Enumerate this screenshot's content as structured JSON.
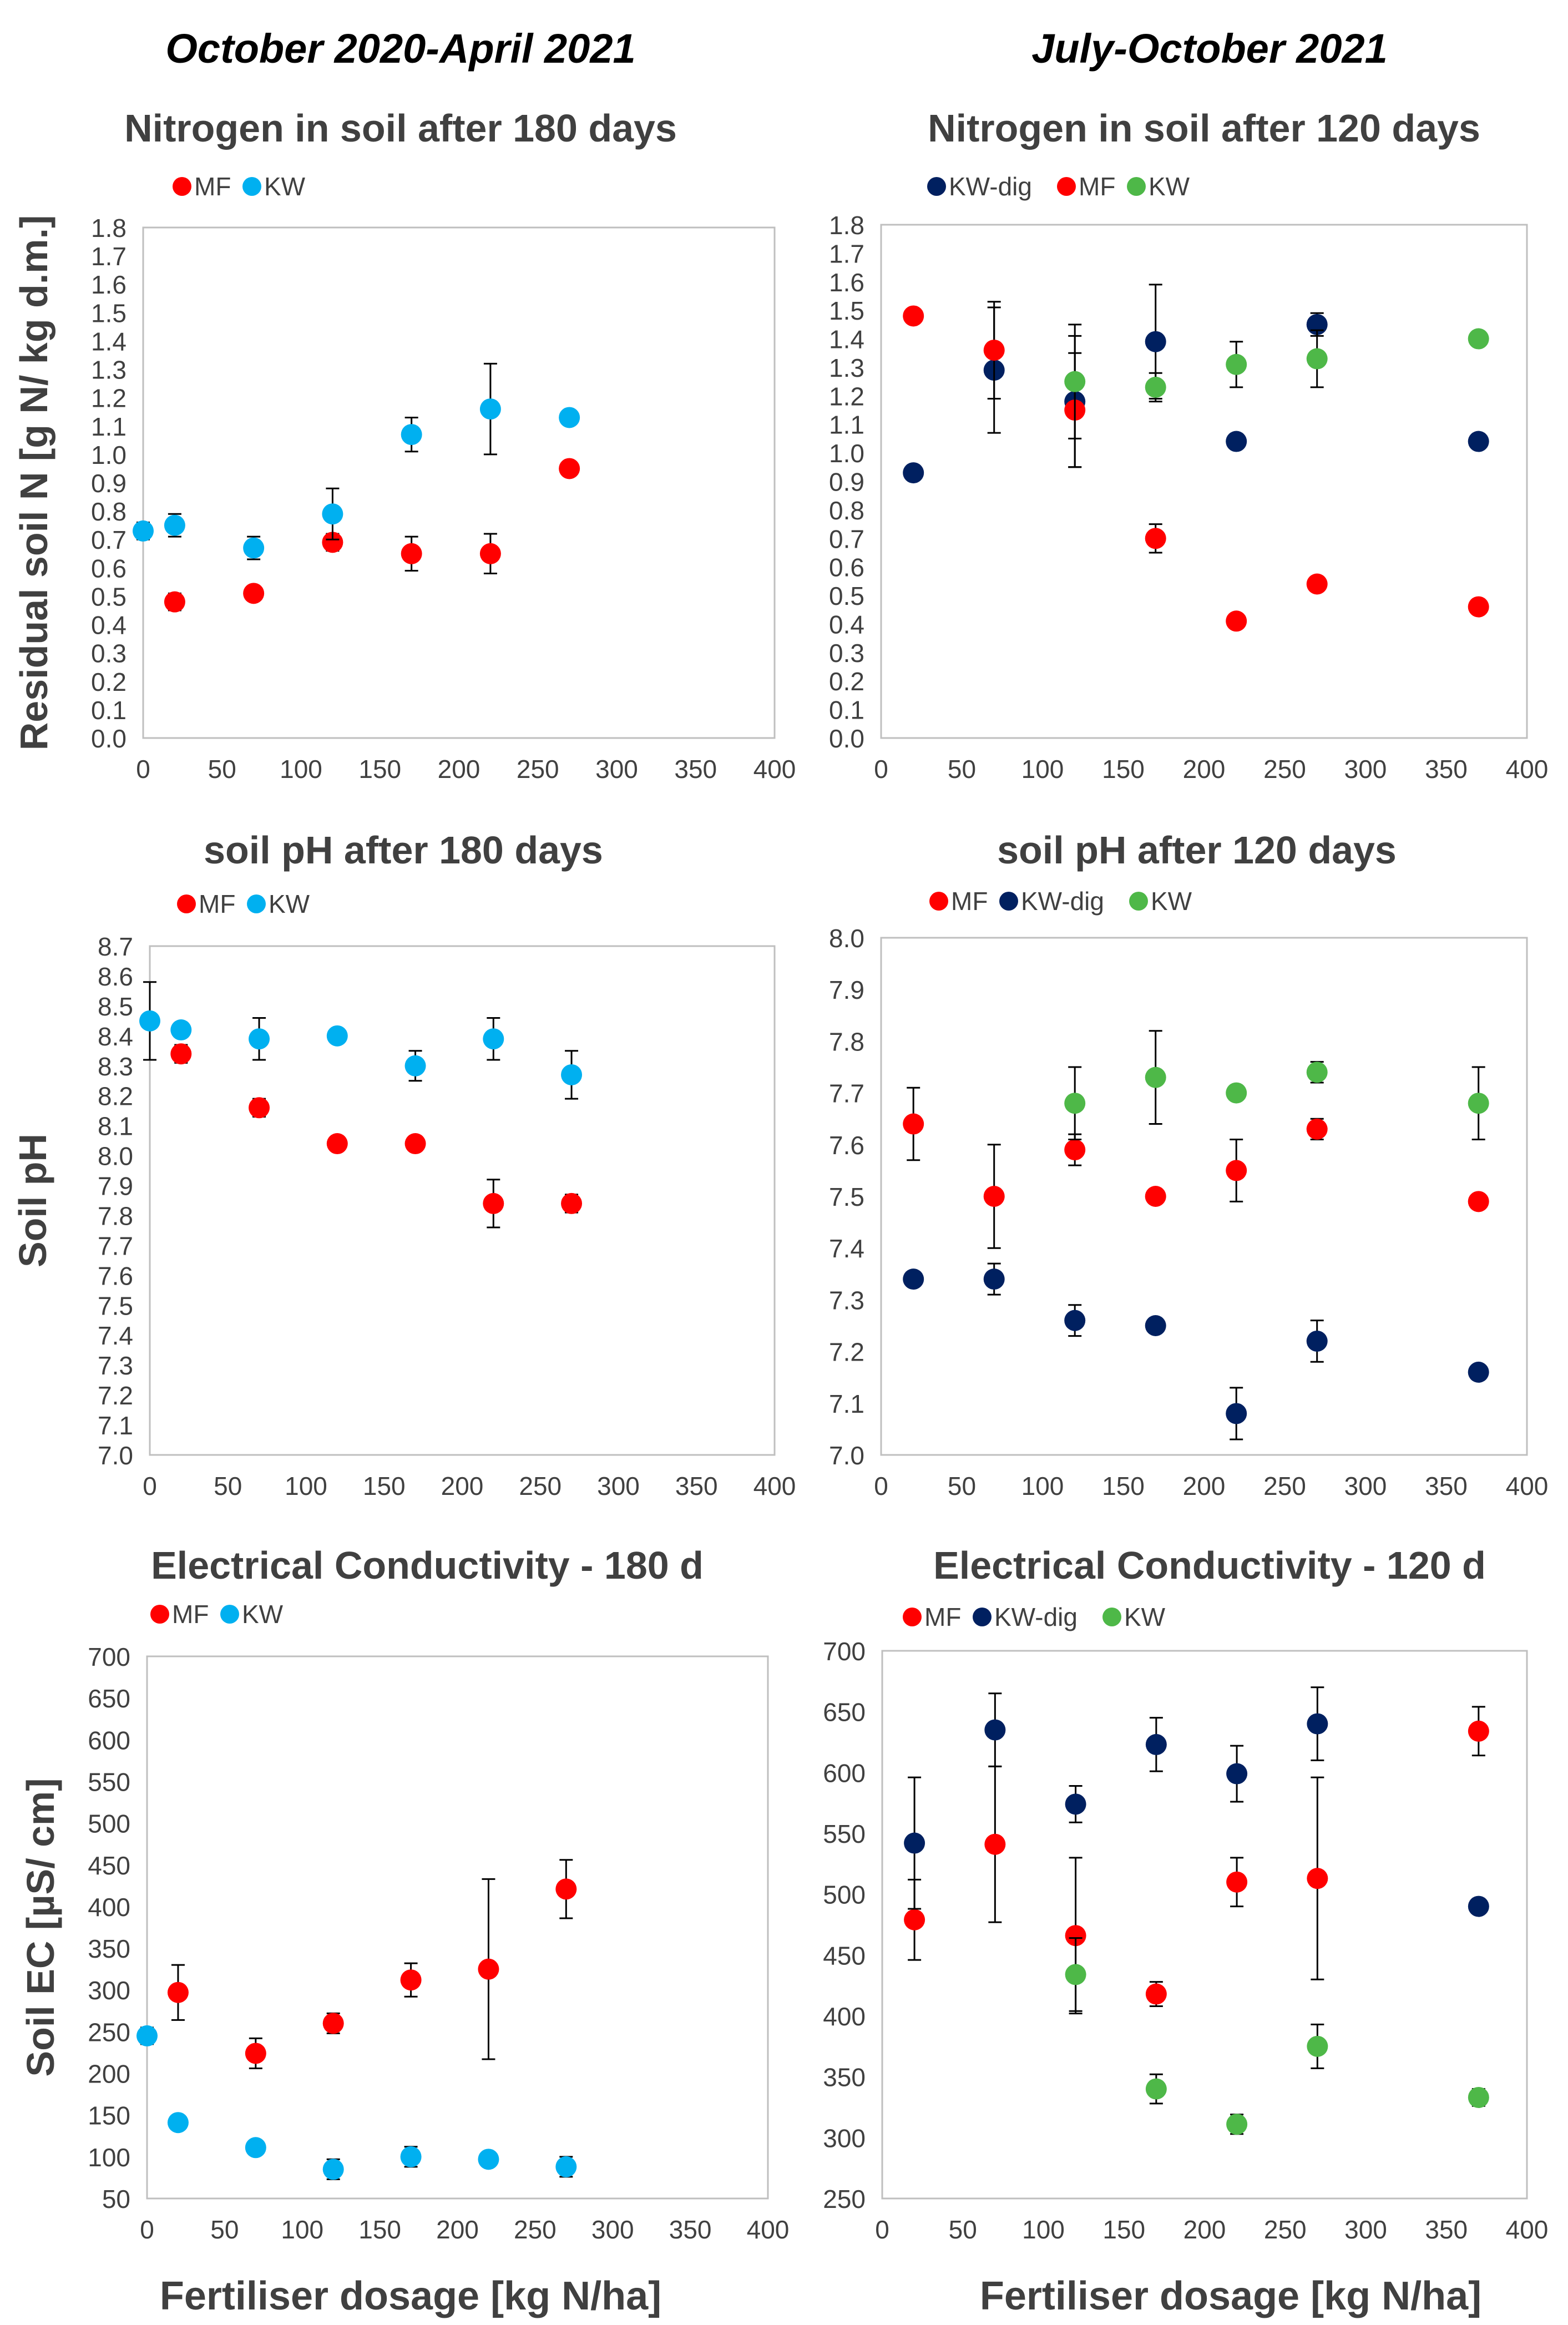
{
  "columns": [
    {
      "heading": "October 2020-April 2021"
    },
    {
      "heading": "July-October 2021"
    }
  ],
  "shared": {
    "xlabel": "Fertiliser dosage [kg N/ha]",
    "colors": {
      "MF": "#ff0000",
      "KW": "#00b0f0",
      "KW-dig": "#002060",
      "KW_green": "#4eb848",
      "axis": "#7f7f7f",
      "text": "#404040"
    }
  },
  "chart_data": [
    {
      "type": "scatter",
      "title": "Nitrogen in soil after 180 days",
      "ylabel": "Residual soil N [g N/ kg d.m.]",
      "xlim": [
        0,
        400
      ],
      "ylim": [
        0,
        1.8
      ],
      "xticks": [
        "0",
        "50",
        "100",
        "150",
        "200",
        "250",
        "300",
        "350",
        "400"
      ],
      "yticks": [
        "0.0",
        "0.1",
        "0.2",
        "0.3",
        "0.4",
        "0.5",
        "0.6",
        "0.7",
        "0.8",
        "0.9",
        "1.0",
        "1.1",
        "1.2",
        "1.3",
        "1.4",
        "1.5",
        "1.6",
        "1.7",
        "1.8"
      ],
      "legend": [
        "MF",
        "KW"
      ],
      "series": [
        {
          "name": "MF",
          "color": "#ff0000",
          "x": [
            20,
            70,
            120,
            170,
            220,
            270
          ],
          "y": [
            0.48,
            0.51,
            0.69,
            0.65,
            0.65,
            0.95
          ],
          "err": [
            0.03,
            0.02,
            0.03,
            0.06,
            0.07,
            0.0
          ]
        },
        {
          "name": "KW",
          "color": "#00b0f0",
          "x": [
            0,
            20,
            70,
            120,
            170,
            220,
            270
          ],
          "y": [
            0.73,
            0.75,
            0.67,
            0.79,
            1.07,
            1.16,
            1.13
          ],
          "err": [
            0.03,
            0.04,
            0.04,
            0.09,
            0.06,
            0.16,
            0.0
          ]
        }
      ]
    },
    {
      "type": "scatter",
      "title": "Nitrogen in soil after 120 days",
      "ylabel": "",
      "xlim": [
        0,
        400
      ],
      "ylim": [
        0,
        1.8
      ],
      "xticks": [
        "0",
        "50",
        "100",
        "150",
        "200",
        "250",
        "300",
        "350",
        "400"
      ],
      "yticks": [
        "0.0",
        "0.1",
        "0.2",
        "0.3",
        "0.4",
        "0.5",
        "0.6",
        "0.7",
        "0.8",
        "0.9",
        "1.0",
        "1.1",
        "1.2",
        "1.3",
        "1.4",
        "1.5",
        "1.6",
        "1.7",
        "1.8"
      ],
      "legend": [
        "KW-dig",
        "MF",
        "KW"
      ],
      "series": [
        {
          "name": "KW-dig",
          "color": "#002060",
          "x": [
            20,
            70,
            120,
            170,
            220,
            270,
            370
          ],
          "y": [
            0.93,
            1.29,
            1.18,
            1.39,
            1.04,
            1.45,
            1.04
          ],
          "err": [
            0,
            0.22,
            0.23,
            0.2,
            0,
            0.04,
            0
          ]
        },
        {
          "name": "MF",
          "color": "#ff0000",
          "x": [
            20,
            70,
            120,
            170,
            220,
            270,
            370
          ],
          "y": [
            1.48,
            1.36,
            1.15,
            0.7,
            0.41,
            0.54,
            0.46
          ],
          "err": [
            0,
            0.17,
            0.2,
            0.05,
            0,
            0,
            0
          ]
        },
        {
          "name": "KW",
          "color": "#4eb848",
          "x": [
            120,
            170,
            220,
            270,
            370
          ],
          "y": [
            1.25,
            1.23,
            1.31,
            1.33,
            1.4
          ],
          "err": [
            0.2,
            0.05,
            0.08,
            0.1,
            0
          ]
        }
      ]
    },
    {
      "type": "scatter",
      "title": "soil pH after 180 days",
      "ylabel": "Soil pH",
      "xlim": [
        0,
        400
      ],
      "ylim": [
        7.0,
        8.7
      ],
      "xticks": [
        "0",
        "50",
        "100",
        "150",
        "200",
        "250",
        "300",
        "350",
        "400"
      ],
      "yticks": [
        "7.0",
        "7.1",
        "7.2",
        "7.3",
        "7.4",
        "7.5",
        "7.6",
        "7.7",
        "7.8",
        "7.9",
        "8.0",
        "8.1",
        "8.2",
        "8.3",
        "8.4",
        "8.5",
        "8.6",
        "8.7"
      ],
      "legend": [
        "MF",
        "KW"
      ],
      "series": [
        {
          "name": "MF",
          "color": "#ff0000",
          "x": [
            20,
            70,
            120,
            170,
            220,
            270
          ],
          "y": [
            8.34,
            8.16,
            8.04,
            8.04,
            7.84,
            7.84
          ],
          "err": [
            0.03,
            0.03,
            0,
            0,
            0.08,
            0.03
          ]
        },
        {
          "name": "KW",
          "color": "#00b0f0",
          "x": [
            0,
            20,
            70,
            120,
            170,
            220,
            270
          ],
          "y": [
            8.45,
            8.42,
            8.39,
            8.4,
            8.3,
            8.39,
            8.27
          ],
          "err": [
            0.13,
            0,
            0.07,
            0,
            0.05,
            0.07,
            0.08
          ]
        }
      ]
    },
    {
      "type": "scatter",
      "title": "soil pH after 120 days",
      "ylabel": "",
      "xlim": [
        0,
        400
      ],
      "ylim": [
        7.0,
        8.0
      ],
      "xticks": [
        "0",
        "50",
        "100",
        "150",
        "200",
        "250",
        "300",
        "350",
        "400"
      ],
      "yticks": [
        "7.0",
        "7.1",
        "7.2",
        "7.3",
        "7.4",
        "7.5",
        "7.6",
        "7.7",
        "7.8",
        "7.9",
        "8.0"
      ],
      "legend": [
        "MF",
        "KW-dig",
        "KW"
      ],
      "series": [
        {
          "name": "MF",
          "color": "#ff0000",
          "x": [
            20,
            70,
            120,
            170,
            220,
            270,
            370
          ],
          "y": [
            7.64,
            7.5,
            7.59,
            7.5,
            7.55,
            7.63,
            7.49
          ],
          "err": [
            0.07,
            0.1,
            0.03,
            0,
            0.06,
            0.02,
            0
          ]
        },
        {
          "name": "KW-dig",
          "color": "#002060",
          "x": [
            20,
            70,
            120,
            170,
            220,
            270,
            370
          ],
          "y": [
            7.34,
            7.34,
            7.26,
            7.25,
            7.08,
            7.22,
            7.16
          ],
          "err": [
            0,
            0.03,
            0.03,
            0,
            0.05,
            0.04,
            0
          ]
        },
        {
          "name": "KW",
          "color": "#4eb848",
          "x": [
            120,
            170,
            220,
            270,
            370
          ],
          "y": [
            7.68,
            7.73,
            7.7,
            7.74,
            7.68
          ],
          "err": [
            0.07,
            0.09,
            0,
            0.02,
            0.07
          ]
        }
      ]
    },
    {
      "type": "scatter",
      "title": "Electrical Conductivity - 180 d",
      "ylabel": "Soil EC [µS/ cm]",
      "xlim": [
        0,
        400
      ],
      "ylim": [
        50,
        700
      ],
      "xticks": [
        "0",
        "50",
        "100",
        "150",
        "200",
        "250",
        "300",
        "350",
        "400"
      ],
      "yticks": [
        "50",
        "100",
        "150",
        "200",
        "250",
        "300",
        "350",
        "400",
        "450",
        "500",
        "550",
        "600",
        "650",
        "700"
      ],
      "legend": [
        "MF",
        "KW"
      ],
      "series": [
        {
          "name": "MF",
          "color": "#ff0000",
          "x": [
            20,
            70,
            120,
            170,
            220,
            270
          ],
          "y": [
            297,
            224,
            260,
            312,
            325,
            421
          ],
          "err": [
            33,
            18,
            12,
            20,
            108,
            35
          ]
        },
        {
          "name": "KW",
          "color": "#00b0f0",
          "x": [
            0,
            20,
            70,
            120,
            170,
            220,
            270
          ],
          "y": [
            245,
            141,
            111,
            85,
            100,
            97,
            88
          ],
          "err": [
            10,
            8,
            0,
            12,
            12,
            0,
            12
          ]
        }
      ]
    },
    {
      "type": "scatter",
      "title": "Electrical Conductivity - 120 d",
      "ylabel": "",
      "xlim": [
        0,
        400
      ],
      "ylim": [
        250,
        700
      ],
      "xticks": [
        "0",
        "50",
        "100",
        "150",
        "200",
        "250",
        "300",
        "350",
        "400"
      ],
      "yticks": [
        "250",
        "300",
        "350",
        "400",
        "450",
        "500",
        "550",
        "600",
        "650",
        "700"
      ],
      "legend": [
        "MF",
        "KW-dig",
        "KW"
      ],
      "series": [
        {
          "name": "MF",
          "color": "#ff0000",
          "x": [
            20,
            70,
            120,
            170,
            220,
            270,
            370
          ],
          "y": [
            479,
            541,
            466,
            418,
            510,
            513,
            634
          ],
          "err": [
            33,
            64,
            64,
            10,
            20,
            83,
            20
          ]
        },
        {
          "name": "KW-dig",
          "color": "#002060",
          "x": [
            20,
            70,
            120,
            170,
            220,
            270,
            370
          ],
          "y": [
            542,
            635,
            574,
            623,
            599,
            640,
            490
          ],
          "err": [
            54,
            30,
            15,
            22,
            23,
            30,
            0
          ]
        },
        {
          "name": "KW",
          "color": "#4eb848",
          "x": [
            120,
            170,
            220,
            270,
            370
          ],
          "y": [
            434,
            340,
            311,
            375,
            333
          ],
          "err": [
            30,
            12,
            8,
            18,
            7
          ]
        }
      ]
    }
  ]
}
